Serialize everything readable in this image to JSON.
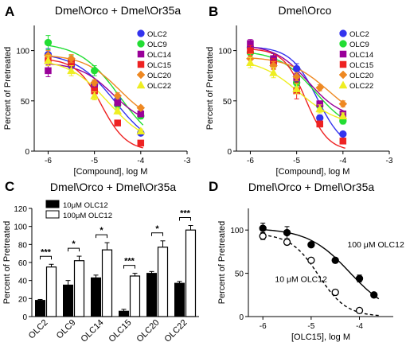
{
  "chart_data": [
    {
      "panel": "A",
      "type": "line",
      "title": "Dmel\\Orco + Dmel\\Or35a",
      "xlabel": "[Compound], log M",
      "ylabel": "Percent of Pretreated",
      "xlim": [
        -6.3,
        -3
      ],
      "ylim": [
        0,
        125
      ],
      "xticks": [
        "-6",
        "-5",
        "-4",
        "-3"
      ],
      "yticks": [
        "0",
        "50",
        "100"
      ],
      "legend_position": "top-right",
      "series": [
        {
          "name": "OLC2",
          "color": "#3333ee",
          "marker": "circle",
          "x": [
            -6,
            -5.5,
            -5,
            -4.5,
            -4
          ],
          "y": [
            96,
            85,
            66,
            51,
            18
          ],
          "err": [
            6,
            6,
            4,
            4,
            2
          ]
        },
        {
          "name": "OLC9",
          "color": "#22dd33",
          "marker": "circle",
          "x": [
            -6,
            -5.5,
            -5,
            -4.5,
            -4
          ],
          "y": [
            108,
            90,
            80,
            46,
            35
          ],
          "err": [
            7,
            5,
            5,
            4,
            3
          ]
        },
        {
          "name": "OLC14",
          "color": "#990099",
          "marker": "square",
          "x": [
            -6,
            -5.5,
            -5,
            -4.5,
            -4
          ],
          "y": [
            80,
            88,
            63,
            48,
            37
          ],
          "err": [
            6,
            5,
            4,
            3,
            2
          ]
        },
        {
          "name": "OLC15",
          "color": "#ee2222",
          "marker": "square",
          "x": [
            -6,
            -5.5,
            -5,
            -4.5,
            -4
          ],
          "y": [
            90,
            88,
            60,
            28,
            8
          ],
          "err": [
            5,
            4,
            3,
            2,
            1
          ]
        },
        {
          "name": "OLC20",
          "color": "#ee8822",
          "marker": "diamond",
          "x": [
            -6,
            -5.5,
            -5,
            -4.5,
            -4
          ],
          "y": [
            95,
            92,
            68,
            55,
            43
          ],
          "err": [
            5,
            4,
            3,
            3,
            2
          ]
        },
        {
          "name": "OLC22",
          "color": "#eeee22",
          "marker": "triangle",
          "x": [
            -6,
            -5.5,
            -5,
            -4.5,
            -4
          ],
          "y": [
            90,
            80,
            55,
            40,
            20
          ],
          "err": [
            5,
            5,
            4,
            3,
            2
          ]
        }
      ],
      "curves": [
        {
          "color": "#3333ee",
          "top": 98,
          "bottom": 0,
          "logec50": -4.55,
          "hill": 1.0
        },
        {
          "color": "#22dd33",
          "top": 108,
          "bottom": 0,
          "logec50": -4.45,
          "hill": 1.0
        },
        {
          "color": "#990099",
          "top": 88,
          "bottom": 25,
          "logec50": -4.6,
          "hill": 1.2
        },
        {
          "color": "#ee2222",
          "top": 92,
          "bottom": 0,
          "logec50": -4.85,
          "hill": 1.6
        },
        {
          "color": "#ee8822",
          "top": 96,
          "bottom": 25,
          "logec50": -4.45,
          "hill": 1.1
        },
        {
          "color": "#eeee22",
          "top": 92,
          "bottom": 5,
          "logec50": -4.7,
          "hill": 1.0
        }
      ]
    },
    {
      "panel": "B",
      "type": "line",
      "title": "Dmel\\Orco",
      "xlabel": "[Compound], log M",
      "ylabel": "Percent of Pretreated",
      "xlim": [
        -6.3,
        -3
      ],
      "ylim": [
        0,
        125
      ],
      "xticks": [
        "-6",
        "-5",
        "-4",
        "-3"
      ],
      "yticks": [
        "0",
        "50",
        "100"
      ],
      "legend_position": "top-right",
      "series": [
        {
          "name": "OLC2",
          "color": "#3333ee",
          "marker": "circle",
          "x": [
            -6,
            -5.5,
            -5,
            -4.5,
            -4
          ],
          "y": [
            103,
            88,
            82,
            33,
            17
          ],
          "err": [
            5,
            5,
            5,
            3,
            2
          ]
        },
        {
          "name": "OLC9",
          "color": "#22dd33",
          "marker": "circle",
          "x": [
            -6,
            -5.5,
            -5,
            -4.5,
            -4
          ],
          "y": [
            98,
            92,
            68,
            45,
            30
          ],
          "err": [
            6,
            5,
            4,
            4,
            3
          ]
        },
        {
          "name": "OLC14",
          "color": "#990099",
          "marker": "square",
          "x": [
            -6,
            -5.5,
            -5,
            -4.5,
            -4
          ],
          "y": [
            107,
            92,
            73,
            47,
            37
          ],
          "err": [
            4,
            5,
            4,
            3,
            3
          ]
        },
        {
          "name": "OLC15",
          "color": "#ee2222",
          "marker": "square",
          "x": [
            -6,
            -5.5,
            -5,
            -4.5,
            -4
          ],
          "y": [
            100,
            87,
            60,
            27,
            10
          ],
          "err": [
            5,
            5,
            8,
            3,
            2
          ]
        },
        {
          "name": "OLC20",
          "color": "#ee8822",
          "marker": "diamond",
          "x": [
            -6,
            -5.5,
            -5,
            -4.5,
            -4
          ],
          "y": [
            92,
            85,
            74,
            63,
            47
          ],
          "err": [
            5,
            4,
            4,
            3,
            3
          ]
        },
        {
          "name": "OLC22",
          "color": "#eeee22",
          "marker": "triangle",
          "x": [
            -6,
            -5.5,
            -5,
            -4.5,
            -4
          ],
          "y": [
            88,
            78,
            62,
            42,
            35
          ],
          "err": [
            5,
            5,
            5,
            4,
            3
          ]
        }
      ],
      "curves": [
        {
          "color": "#3333ee",
          "top": 104,
          "bottom": 0,
          "logec50": -4.55,
          "hill": 1.5
        },
        {
          "color": "#22dd33",
          "top": 100,
          "bottom": 18,
          "logec50": -4.6,
          "hill": 1.1
        },
        {
          "color": "#990099",
          "top": 106,
          "bottom": 32,
          "logec50": -4.75,
          "hill": 1.2
        },
        {
          "color": "#ee2222",
          "top": 102,
          "bottom": 0,
          "logec50": -4.8,
          "hill": 1.8
        },
        {
          "color": "#ee8822",
          "top": 94,
          "bottom": 25,
          "logec50": -4.3,
          "hill": 1.0
        },
        {
          "color": "#eeee22",
          "top": 92,
          "bottom": 25,
          "logec50": -4.95,
          "hill": 1.0
        }
      ]
    },
    {
      "panel": "C",
      "type": "bar",
      "title": "Dmel\\Orco + Dmel\\Or35a",
      "ylabel": "Percent of Pretreated",
      "ylim": [
        0,
        120
      ],
      "yticks": [
        "0",
        "20",
        "40",
        "60",
        "80",
        "100",
        "120"
      ],
      "categories": [
        "OLC2",
        "OLC9",
        "OLC14",
        "OLC15",
        "OLC20",
        "OLC22"
      ],
      "legend_position": "top-left",
      "series": [
        {
          "name": "10μM OLC12",
          "color": "#000000",
          "values": [
            18,
            35,
            43,
            6,
            48,
            37
          ],
          "err": [
            1,
            5,
            3,
            2,
            2,
            2
          ]
        },
        {
          "name": "100μM OLC12",
          "color": "#ffffff",
          "values": [
            55,
            62,
            74,
            45,
            77,
            96
          ],
          "err": [
            3,
            5,
            8,
            3,
            7,
            5
          ]
        }
      ],
      "significance": [
        "***",
        "*",
        "*",
        "***",
        "*",
        "***"
      ]
    },
    {
      "panel": "D",
      "type": "line",
      "title": "Dmel\\Orco + Dmel\\Or35a",
      "xlabel": "[OLC15], log M",
      "ylabel": "Percent of Pretreated",
      "xlim": [
        -6.3,
        -3.3
      ],
      "ylim": [
        0,
        125
      ],
      "xticks": [
        "-6",
        "-5",
        "-4"
      ],
      "yticks": [
        "0",
        "50",
        "100"
      ],
      "series": [
        {
          "name": "100 μM OLC12",
          "marker": "filled-circle",
          "x": [
            -6,
            -5.5,
            -5,
            -4.5,
            -4,
            -3.7
          ],
          "y": [
            102,
            97,
            83,
            65,
            44,
            25
          ],
          "err": [
            6,
            7,
            2,
            2,
            4,
            2
          ]
        },
        {
          "name": "10 μM OLC12",
          "marker": "open-circle",
          "x": [
            -6,
            -5.5,
            -5,
            -4.5,
            -4
          ],
          "y": [
            93,
            86,
            65,
            28,
            7
          ],
          "err": [
            4,
            3,
            3,
            3,
            1
          ]
        }
      ],
      "curves": [
        {
          "style": "solid",
          "top": 102,
          "bottom": 0,
          "logec50": -4.2,
          "hill": 1.0
        },
        {
          "style": "dashed",
          "top": 96,
          "bottom": 0,
          "logec50": -4.85,
          "hill": 1.5
        }
      ]
    }
  ],
  "panels": [
    {
      "letter": "A",
      "title": "Dmel\\Orco + Dmel\\Or35a"
    },
    {
      "letter": "B",
      "title": "Dmel\\Orco"
    },
    {
      "letter": "C",
      "title": "Dmel\\Orco + Dmel\\Or35a"
    },
    {
      "letter": "D",
      "title": "Dmel\\Orco + Dmel\\Or35a"
    }
  ]
}
